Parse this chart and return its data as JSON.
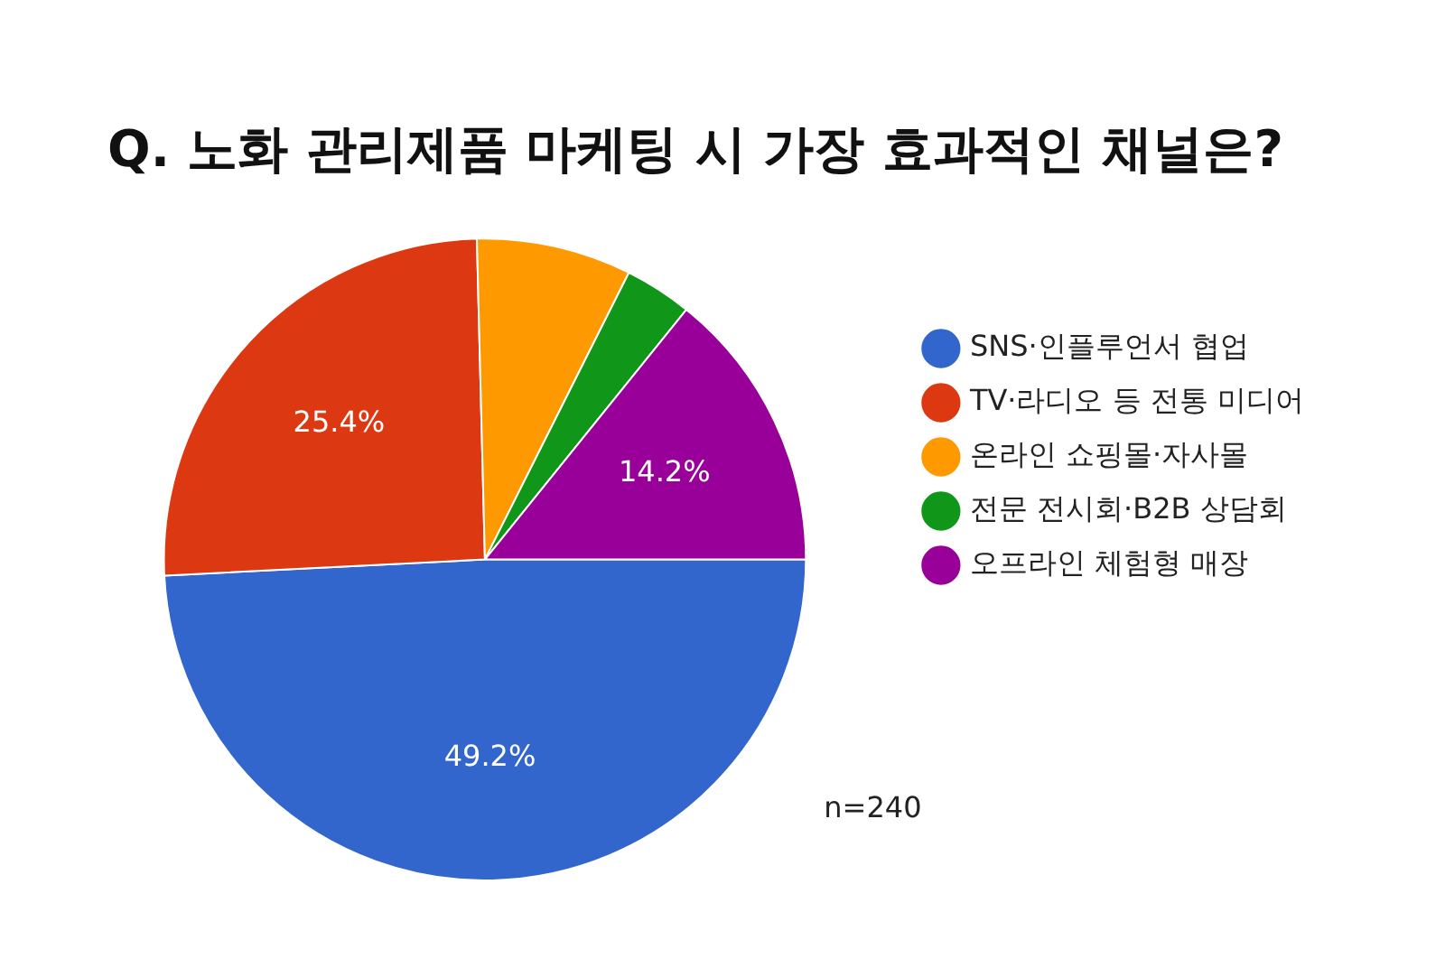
{
  "chart_data": {
    "type": "pie",
    "title": "Q. 노화 관리제품 마케팅 시 가장 효과적인 채널은?",
    "categories": [
      "SNS·인플루언서 협업",
      "TV·라디오 등 전통 미디어",
      "온라인 쇼핑몰·자사몰",
      "전문 전시회·B2B 상담회",
      "오프라인 체험형 매장"
    ],
    "values": [
      49.2,
      25.4,
      7.8,
      3.4,
      14.2
    ],
    "colors": [
      "#3366cc",
      "#dc3912",
      "#ff9900",
      "#109618",
      "#990099"
    ],
    "value_labels": [
      "49.2%",
      "25.4%",
      null,
      null,
      "14.2%"
    ],
    "legend": "right",
    "annotations": [
      "n=240"
    ]
  }
}
